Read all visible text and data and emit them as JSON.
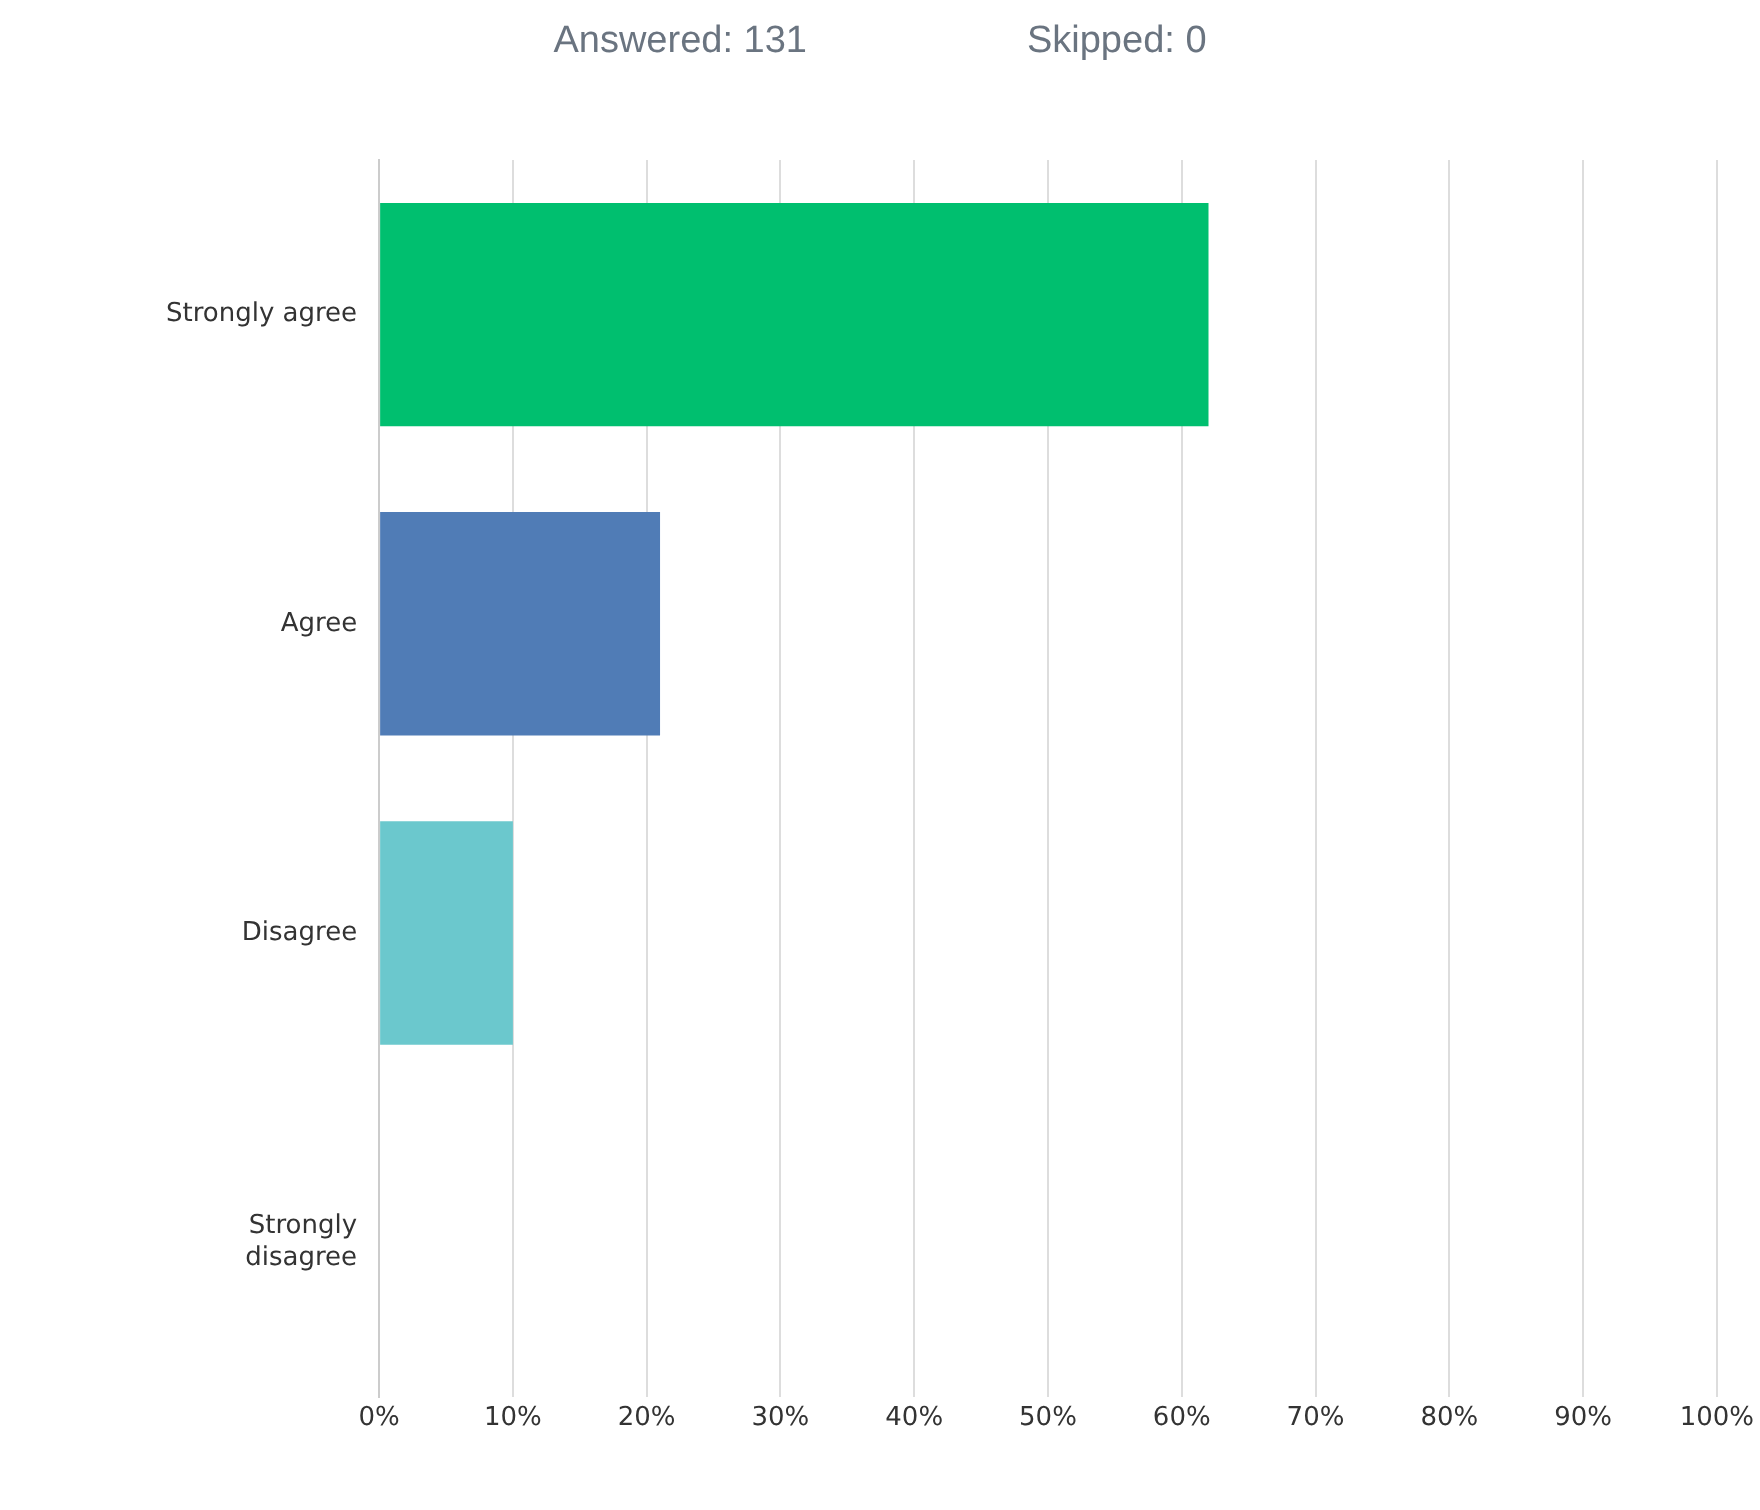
{
  "chart_data": {
    "type": "bar",
    "orientation": "horizontal",
    "title": "Answered: 131",
    "subtitle": "Skipped: 0",
    "categories": [
      "Strongly agree",
      "Agree",
      "Disagree",
      "Strongly disagree"
    ],
    "values": [
      62,
      21,
      10,
      0
    ],
    "colors": [
      "#00bf6f",
      "#507cb6",
      "#6bc8cd",
      "#f9be00"
    ],
    "xlim": [
      0,
      100
    ],
    "xticks": [
      {
        "value": 0,
        "label": "0%"
      },
      {
        "value": 10,
        "label": "10%"
      },
      {
        "value": 20,
        "label": "20%"
      },
      {
        "value": 30,
        "label": "30%"
      },
      {
        "value": 40,
        "label": "40%"
      },
      {
        "value": 50,
        "label": "50%"
      },
      {
        "value": 60,
        "label": "60%"
      },
      {
        "value": 70,
        "label": "70%"
      },
      {
        "value": 80,
        "label": "80%"
      },
      {
        "value": 90,
        "label": "90%"
      },
      {
        "value": 100,
        "label": "100%"
      }
    ],
    "grid": "x",
    "legend": false
  }
}
